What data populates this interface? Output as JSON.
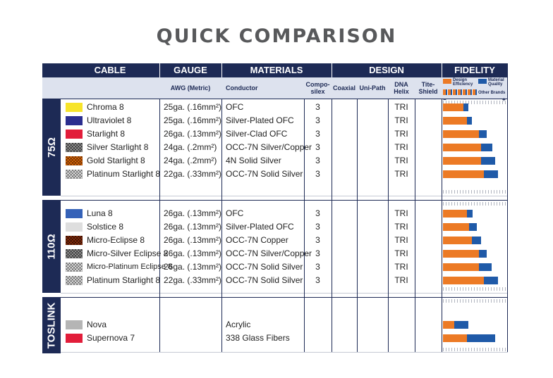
{
  "title": "QUICK COMPARISON",
  "headers": {
    "cable": "CABLE",
    "gauge": "GAUGE",
    "materials": "MATERIALS",
    "design": "DESIGN",
    "fidelity": "FIDELITY",
    "awg": "AWG (Metric)",
    "conductor": "Conductor",
    "composilex": "Compo-\nsilex",
    "coaxial": "Coaxial",
    "unipath": "Uni-Path",
    "dna_helix": "DNA\nHelix",
    "tite_shield": "Tite-\nShield"
  },
  "legend": {
    "design_efficiency": "Design\nEfficiency",
    "material_quality": "Material\nQuality",
    "other_brands": "Other Brands",
    "minus": "−",
    "plus": "+",
    "colors": {
      "design": "#ec7a25",
      "material": "#1f5aa8"
    }
  },
  "sections": [
    {
      "label": "75Ω",
      "rows": [
        {
          "name": "Chroma 8",
          "swatch": "#f7e42a",
          "gauge": "25ga. (.16mm²)",
          "conductor": "OFC",
          "composilex": "3",
          "dna": "TRI",
          "design": 0.22,
          "material": 0.27
        },
        {
          "name": "Ultraviolet 8",
          "swatch": "#2b2e8f",
          "gauge": "25ga. (.16mm²)",
          "conductor": "Silver-Plated OFC",
          "composilex": "3",
          "dna": "TRI",
          "design": 0.26,
          "material": 0.31
        },
        {
          "name": "Starlight 8",
          "swatch": "#e21d3a",
          "gauge": "26ga. (.13mm²)",
          "conductor": "Silver-Clad OFC",
          "composilex": "3",
          "dna": "TRI",
          "design": 0.39,
          "material": 0.47
        },
        {
          "name": "Silver Starlight 8",
          "swatch": "hatch-gray",
          "gauge": "24ga. (.2mm²)",
          "conductor": "OCC-7N Silver/Copper",
          "composilex": "3",
          "dna": "TRI",
          "design": 0.41,
          "material": 0.53
        },
        {
          "name": "Gold Starlight 8",
          "swatch": "hatch-gold",
          "gauge": "24ga. (.2mm²)",
          "conductor": "4N Solid Silver",
          "composilex": "3",
          "dna": "TRI",
          "design": 0.41,
          "material": 0.56
        },
        {
          "name": "Platinum Starlight 8",
          "swatch": "hatch-white",
          "gauge": "22ga. (.33mm²)",
          "conductor": "OCC-7N Solid Silver",
          "composilex": "3",
          "dna": "TRI",
          "design": 0.44,
          "material": 0.59
        }
      ]
    },
    {
      "label": "110Ω",
      "rows": [
        {
          "name": "Luna 8",
          "swatch": "#3562b8",
          "gauge": "26ga. (.13mm²)",
          "conductor": "OFC",
          "composilex": "3",
          "dna": "TRI",
          "design": 0.26,
          "material": 0.32
        },
        {
          "name": "Solstice 8",
          "swatch": "#dedede",
          "gauge": "26ga. (.13mm²)",
          "conductor": "Silver-Plated OFC",
          "composilex": "3",
          "dna": "TRI",
          "design": 0.28,
          "material": 0.36
        },
        {
          "name": "Micro-Eclipse 8",
          "swatch": "hatch-copper",
          "gauge": "26ga. (.13mm²)",
          "conductor": "OCC-7N Copper",
          "composilex": "3",
          "dna": "TRI",
          "design": 0.31,
          "material": 0.41
        },
        {
          "name": "Micro-Silver Eclipse 8",
          "swatch": "hatch-gray",
          "gauge": "26ga. (.13mm²)",
          "conductor": "OCC-7N Silver/Copper",
          "composilex": "3",
          "dna": "TRI",
          "design": 0.39,
          "material": 0.47
        },
        {
          "name": "Micro-Platinum Eclipse 8",
          "swatch": "hatch-white",
          "gauge": "26ga. (.13mm²)",
          "conductor": "OCC-7N Solid Silver",
          "composilex": "3",
          "dna": "TRI",
          "design": 0.39,
          "material": 0.52
        },
        {
          "name": "Platinum Starlight 8",
          "swatch": "hatch-white",
          "gauge": "22ga. (.33mm²)",
          "conductor": "OCC-7N Solid Silver",
          "composilex": "3",
          "dna": "TRI",
          "design": 0.44,
          "material": 0.59
        }
      ]
    },
    {
      "label": "TOSLINK",
      "rows": [
        {
          "name": "Nova",
          "swatch": "#b5b5b5",
          "gauge": "",
          "conductor": "Acrylic",
          "composilex": "",
          "dna": "",
          "design": 0.12,
          "material": 0.27
        },
        {
          "name": "Supernova 7",
          "swatch": "#e21d3a",
          "gauge": "",
          "conductor": "338 Glass Fibers",
          "composilex": "",
          "dna": "",
          "design": 0.26,
          "material": 0.56
        }
      ]
    }
  ]
}
